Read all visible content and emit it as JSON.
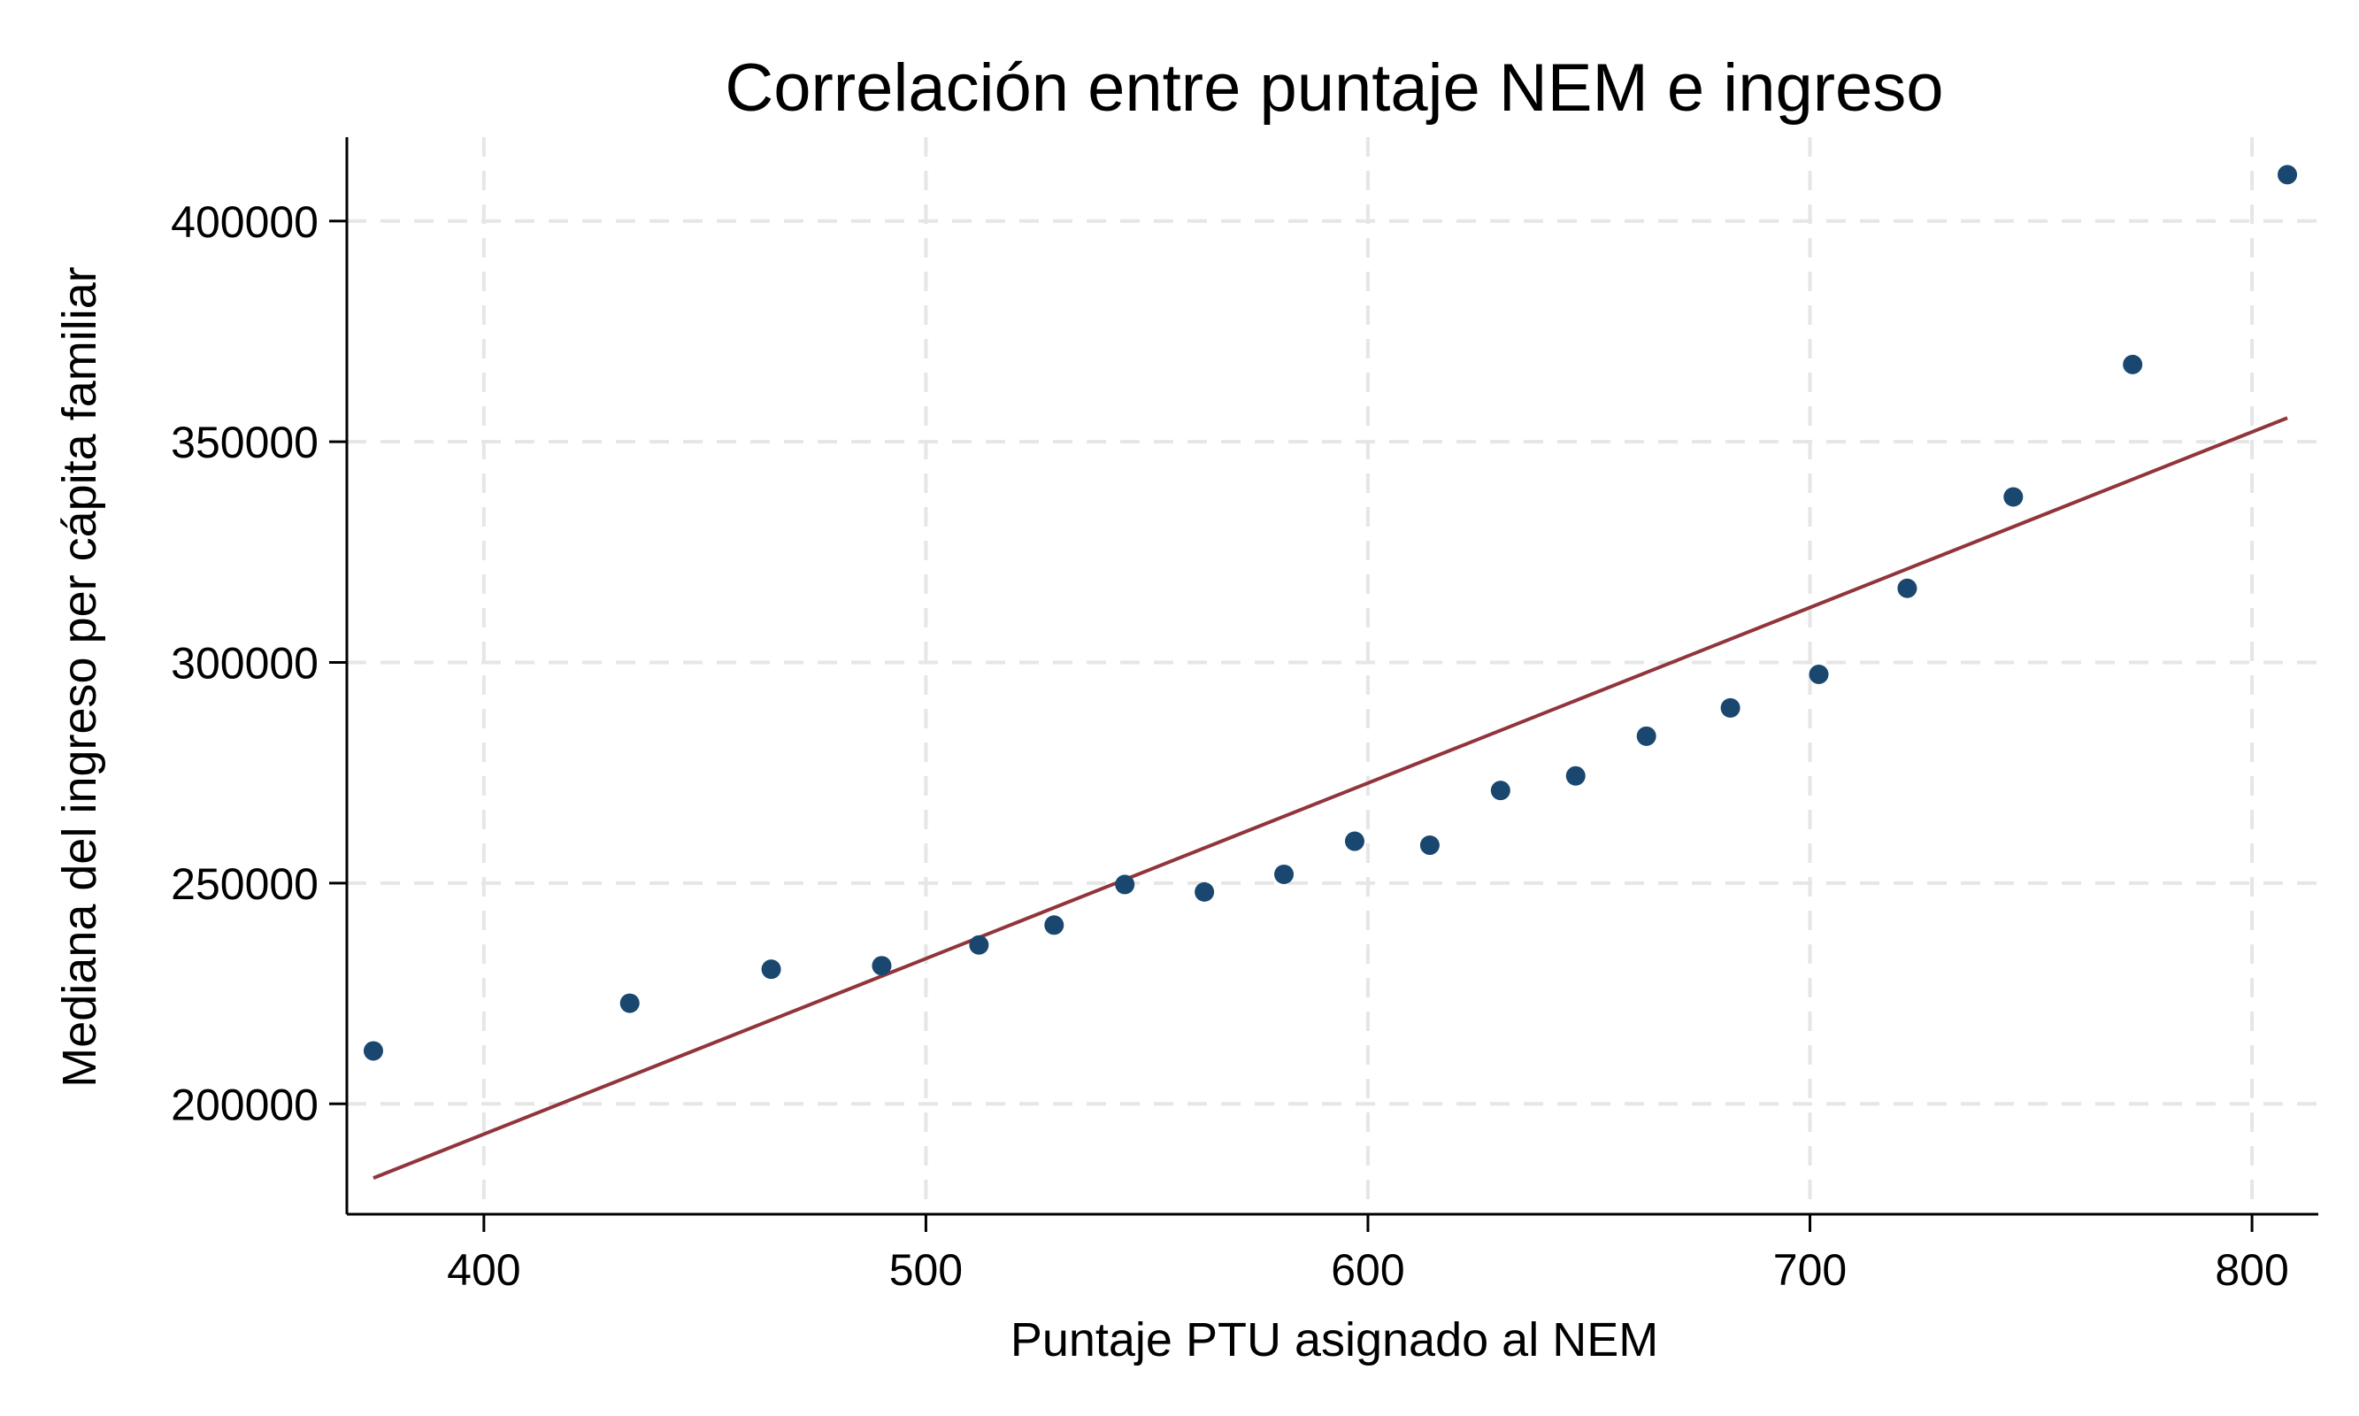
{
  "chart_data": {
    "type": "scatter",
    "title": "Correlación entre puntaje NEM e ingreso",
    "xlabel": "Puntaje PTU asignado al NEM",
    "ylabel": "Mediana del ingreso per cápita familiar",
    "xlim": [
      369,
      815
    ],
    "ylim": [
      175000,
      419000
    ],
    "x_ticks": [
      400,
      500,
      600,
      700,
      800
    ],
    "y_ticks": [
      200000,
      250000,
      300000,
      350000,
      400000
    ],
    "x_tick_labels": [
      "400",
      "500",
      "600",
      "700",
      "800"
    ],
    "y_tick_labels": [
      "200000",
      "250000",
      "300000",
      "350000",
      "400000"
    ],
    "grid": true,
    "legend": "none",
    "points": [
      {
        "x": 375,
        "y": 212000
      },
      {
        "x": 433,
        "y": 222800
      },
      {
        "x": 465,
        "y": 230500
      },
      {
        "x": 490,
        "y": 231300
      },
      {
        "x": 512,
        "y": 236000
      },
      {
        "x": 529,
        "y": 240500
      },
      {
        "x": 545,
        "y": 249700
      },
      {
        "x": 563,
        "y": 248000
      },
      {
        "x": 581,
        "y": 252000
      },
      {
        "x": 597,
        "y": 259500
      },
      {
        "x": 614,
        "y": 258600
      },
      {
        "x": 630,
        "y": 271000
      },
      {
        "x": 647,
        "y": 274300
      },
      {
        "x": 663,
        "y": 283300
      },
      {
        "x": 682,
        "y": 289700
      },
      {
        "x": 702,
        "y": 297300
      },
      {
        "x": 722,
        "y": 316800
      },
      {
        "x": 746,
        "y": 337500
      },
      {
        "x": 773,
        "y": 367500
      },
      {
        "x": 808,
        "y": 410500
      }
    ],
    "fit_line": {
      "x": [
        375,
        808
      ],
      "y": [
        183200,
        355400
      ]
    },
    "colors": {
      "points": "#1a476f",
      "fit_line": "#90353b",
      "grid": "#e6e6e6",
      "axis": "#000000",
      "background": "#ffffff"
    }
  }
}
